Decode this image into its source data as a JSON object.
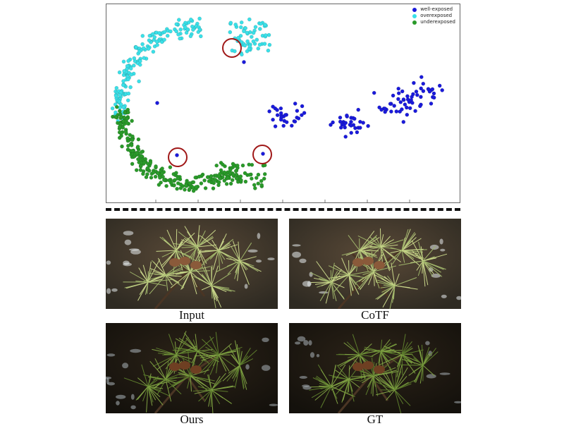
{
  "legend": [
    {
      "label": "well-exposed",
      "color": "#1a1adb"
    },
    {
      "label": "overexposed",
      "color": "#3ae0e8"
    },
    {
      "label": "underexposed",
      "color": "#2a9a2a"
    }
  ],
  "colors": {
    "well_exposed": "#1a1adb",
    "overexposed": "#3ae0e8",
    "underexposed": "#2a9a2a",
    "circle_highlight": "#a01818"
  },
  "panels": [
    {
      "caption": "Input",
      "tone": "bright"
    },
    {
      "caption": "CoTF",
      "tone": "bright"
    },
    {
      "caption": "Ours",
      "tone": "dark"
    },
    {
      "caption": "GT",
      "tone": "dark"
    }
  ]
}
